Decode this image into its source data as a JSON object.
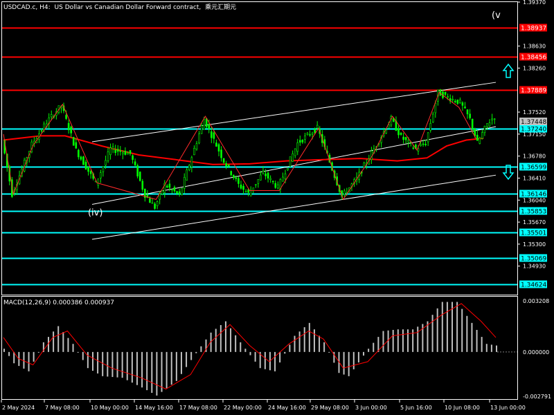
{
  "header": {
    "symbol": "USDCAD.c, H4:",
    "description": "US Dollar vs Canadian Dollar Forward contract,",
    "tag": "乘元汇期元"
  },
  "colors": {
    "background": "#000000",
    "up_candle": "#00ff00",
    "down_candle": "#00ff00",
    "ma_line": "#ff0000",
    "wave_line": "#ff2a2a",
    "channel": "#ffffff",
    "resistance": "#ff0000",
    "support": "#00ffff",
    "macd_hist": "#c0c0c0",
    "macd_signal": "#ff0000",
    "arrow": "#00ffff"
  },
  "chart_data": [
    {
      "type": "candlestick",
      "title": "",
      "ylim": [
        1.3445,
        1.3937
      ],
      "y_ticks": [
        "1.39370",
        "1.38630",
        "1.38260",
        "1.37520",
        "1.37150",
        "1.36780",
        "1.36410",
        "1.36040",
        "1.35670",
        "1.35300",
        "1.34930"
      ],
      "x_tick_labels": [
        "2 May 2024",
        "7 May 08:00",
        "10 May 00:00",
        "14 May 16:00",
        "17 May 08:00",
        "22 May 00:00",
        "24 May 16:00",
        "29 May 08:00",
        "3 Jun 00:00",
        "5 Jun 16:00",
        "10 Jun 08:00",
        "13 Jun 00:00"
      ],
      "current_price": "1.37448",
      "resistance_levels": [
        {
          "label": "1.38937",
          "value": 1.38937
        },
        {
          "label": "1.38456",
          "value": 1.38456
        },
        {
          "label": "1.37889",
          "value": 1.37889
        }
      ],
      "support_levels": [
        {
          "label": "1.37240",
          "value": 1.3724
        },
        {
          "label": "1.36599",
          "value": 1.36599
        },
        {
          "label": "1.36146",
          "value": 1.36146
        },
        {
          "label": "1.35853",
          "value": 1.35853
        },
        {
          "label": "1.35501",
          "value": 1.35501
        },
        {
          "label": "1.35069",
          "value": 1.35069
        },
        {
          "label": "1.34624",
          "value": 1.34624
        }
      ],
      "wave_labels": [
        {
          "text": "(iv)",
          "bar": 36,
          "price": 1.3578
        },
        {
          "text": "(v",
          "bar": 200,
          "price": 1.391
        }
      ],
      "channel": {
        "upper": [
          [
            36,
            1.3702
          ],
          [
            200,
            1.3802
          ]
        ],
        "lower": [
          [
            36,
            1.3538
          ],
          [
            200,
            1.3646
          ]
        ]
      },
      "ma_line": [
        [
          0,
          1.3705
        ],
        [
          15,
          1.3712
        ],
        [
          25,
          1.3712
        ],
        [
          40,
          1.3695
        ],
        [
          55,
          1.368
        ],
        [
          70,
          1.3672
        ],
        [
          85,
          1.3664
        ],
        [
          100,
          1.3665
        ],
        [
          115,
          1.367
        ],
        [
          130,
          1.3672
        ],
        [
          145,
          1.3674
        ],
        [
          160,
          1.367
        ],
        [
          172,
          1.3675
        ],
        [
          180,
          1.3695
        ],
        [
          188,
          1.3705
        ],
        [
          195,
          1.3708
        ]
      ],
      "wave_path": [
        [
          0,
          1.3715
        ],
        [
          4,
          1.3614
        ],
        [
          12,
          1.3696
        ],
        [
          24,
          1.3765
        ],
        [
          38,
          1.3633
        ],
        [
          62,
          1.3605
        ],
        [
          82,
          1.3745
        ],
        [
          100,
          1.362
        ],
        [
          112,
          1.362
        ],
        [
          128,
          1.3725
        ],
        [
          138,
          1.3605
        ],
        [
          150,
          1.368
        ],
        [
          158,
          1.3745
        ],
        [
          168,
          1.3688
        ],
        [
          177,
          1.3785
        ],
        [
          185,
          1.376
        ],
        [
          192,
          1.3707
        ]
      ],
      "price_path": [
        [
          0,
          1.3705
        ],
        [
          4,
          1.3614
        ],
        [
          12,
          1.3698
        ],
        [
          18,
          1.3735
        ],
        [
          24,
          1.3763
        ],
        [
          30,
          1.3688
        ],
        [
          38,
          1.3632
        ],
        [
          44,
          1.369
        ],
        [
          52,
          1.3682
        ],
        [
          58,
          1.3613
        ],
        [
          62,
          1.3592
        ],
        [
          66,
          1.363
        ],
        [
          72,
          1.3612
        ],
        [
          78,
          1.369
        ],
        [
          82,
          1.374
        ],
        [
          90,
          1.367
        ],
        [
          96,
          1.363
        ],
        [
          100,
          1.3615
        ],
        [
          106,
          1.365
        ],
        [
          112,
          1.3625
        ],
        [
          120,
          1.37
        ],
        [
          128,
          1.3725
        ],
        [
          132,
          1.368
        ],
        [
          138,
          1.361
        ],
        [
          144,
          1.364
        ],
        [
          150,
          1.3683
        ],
        [
          158,
          1.374
        ],
        [
          162,
          1.371
        ],
        [
          168,
          1.369
        ],
        [
          172,
          1.37
        ],
        [
          177,
          1.3785
        ],
        [
          182,
          1.3775
        ],
        [
          186,
          1.3768
        ],
        [
          190,
          1.374
        ],
        [
          193,
          1.37
        ],
        [
          197,
          1.3732
        ],
        [
          200,
          1.3745
        ]
      ]
    },
    {
      "type": "bar",
      "title": "MACD(12,26,9) 0.000386 0.000937",
      "ylim": [
        -0.002791,
        0.003208
      ],
      "y_ticks": [
        "0.003208",
        "0.000000",
        "-0.002791"
      ],
      "histogram": [
        [
          0,
          0.0002
        ],
        [
          4,
          -0.0007
        ],
        [
          10,
          -0.0012
        ],
        [
          16,
          0.0006
        ],
        [
          22,
          0.0016
        ],
        [
          28,
          0.0005
        ],
        [
          34,
          -0.001
        ],
        [
          40,
          -0.0015
        ],
        [
          48,
          -0.0016
        ],
        [
          56,
          -0.0022
        ],
        [
          62,
          -0.0027
        ],
        [
          70,
          -0.0018
        ],
        [
          76,
          -0.0005
        ],
        [
          84,
          0.0012
        ],
        [
          90,
          0.0019
        ],
        [
          96,
          0.0006
        ],
        [
          104,
          -0.001
        ],
        [
          110,
          -0.0012
        ],
        [
          118,
          0.001
        ],
        [
          124,
          0.0018
        ],
        [
          130,
          0.0006
        ],
        [
          136,
          -0.0013
        ],
        [
          140,
          -0.0015
        ],
        [
          148,
          0.0002
        ],
        [
          154,
          0.0013
        ],
        [
          160,
          0.0014
        ],
        [
          166,
          0.0014
        ],
        [
          172,
          0.0019
        ],
        [
          178,
          0.0031
        ],
        [
          184,
          0.0031
        ],
        [
          190,
          0.0018
        ],
        [
          196,
          0.0005
        ],
        [
          200,
          0.0004
        ]
      ],
      "signal": [
        [
          0,
          0.0009
        ],
        [
          6,
          -0.0004
        ],
        [
          12,
          -0.0008
        ],
        [
          20,
          0.0009
        ],
        [
          26,
          0.0013
        ],
        [
          34,
          -0.0002
        ],
        [
          44,
          -0.001
        ],
        [
          56,
          -0.0016
        ],
        [
          66,
          -0.0023
        ],
        [
          76,
          -0.0014
        ],
        [
          84,
          0.0006
        ],
        [
          92,
          0.0017
        ],
        [
          100,
          0.0004
        ],
        [
          108,
          -0.0006
        ],
        [
          116,
          0.0005
        ],
        [
          124,
          0.0013
        ],
        [
          130,
          0.0008
        ],
        [
          138,
          -0.001
        ],
        [
          148,
          -0.0006
        ],
        [
          158,
          0.001
        ],
        [
          168,
          0.0012
        ],
        [
          178,
          0.0023
        ],
        [
          186,
          0.003
        ],
        [
          194,
          0.0019
        ],
        [
          200,
          0.0009
        ]
      ]
    }
  ]
}
